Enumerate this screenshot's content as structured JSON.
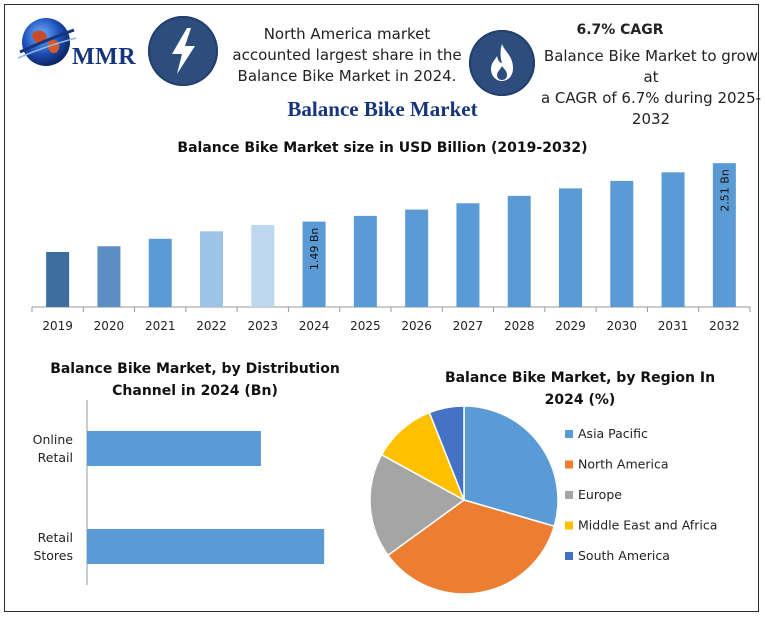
{
  "header": {
    "logo_text": "MMR",
    "left_text": "North America market accounted largest share in the Balance Bike Market in 2024.",
    "left_lines": [
      "North America market",
      "accounted largest share in the",
      "Balance Bike Market in 2024."
    ],
    "cagr_title": "6.7% CAGR",
    "right_lines": [
      "Balance Bike Market to grow at",
      "a CAGR of 6.7% during 2025-",
      "2032"
    ],
    "badge_color": "#2d4d7e",
    "left_icon": "lightning-bolt-icon",
    "right_icon": "flame-icon"
  },
  "main_title": "Balance Bike Market",
  "chart_data": [
    {
      "type": "bar",
      "title": "Balance Bike Market size in USD Billion (2019-2032)",
      "categories": [
        "2019",
        "2020",
        "2021",
        "2022",
        "2023",
        "2024",
        "2025",
        "2026",
        "2027",
        "2028",
        "2029",
        "2030",
        "2031",
        "2032"
      ],
      "values": [
        0.96,
        1.06,
        1.19,
        1.32,
        1.43,
        1.49,
        1.59,
        1.7,
        1.81,
        1.94,
        2.07,
        2.2,
        2.35,
        2.51
      ],
      "value_labels": [
        "",
        "",
        "",
        "",
        "",
        "1.49 Bn",
        "",
        "",
        "",
        "",
        "",
        "",
        "",
        "2.51 Bn"
      ],
      "bar_colors": [
        "#3d6e9e",
        "#5b8ec3",
        "#5b9bd5",
        "#9dc3e6",
        "#bdd7ee",
        "#5b9bd5",
        "#5b9bd5",
        "#5b9bd5",
        "#5b9bd5",
        "#5b9bd5",
        "#5b9bd5",
        "#5b9bd5",
        "#5b9bd5",
        "#5b9bd5"
      ],
      "ylim": [
        0,
        2.6
      ],
      "grid": false,
      "xlabel": "",
      "ylabel": ""
    },
    {
      "type": "bar",
      "orientation": "horizontal",
      "title_lines": [
        "Balance Bike Market, by Distribution",
        "Channel in 2024 (Bn)"
      ],
      "categories": [
        [
          "Online",
          "Retail"
        ],
        [
          "Retail",
          "Stores"
        ]
      ],
      "category_names": [
        "Online Retail",
        "Retail Stores"
      ],
      "values": [
        0.55,
        0.75
      ],
      "xlim": [
        0,
        0.8
      ],
      "color": "#5b9bd5",
      "grid": false
    },
    {
      "type": "pie",
      "title_lines": [
        "Balance Bike Market, by Region In",
        "2024 (%)"
      ],
      "labels": [
        "Asia Pacific",
        "North America",
        "Europe",
        "Middle East and Africa",
        "South America"
      ],
      "values": [
        29.5,
        35.5,
        18.0,
        11.0,
        6.0
      ],
      "colors": [
        "#5b9bd5",
        "#ed7d31",
        "#a5a5a5",
        "#ffc000",
        "#4472c4"
      ],
      "legend": "right"
    }
  ]
}
